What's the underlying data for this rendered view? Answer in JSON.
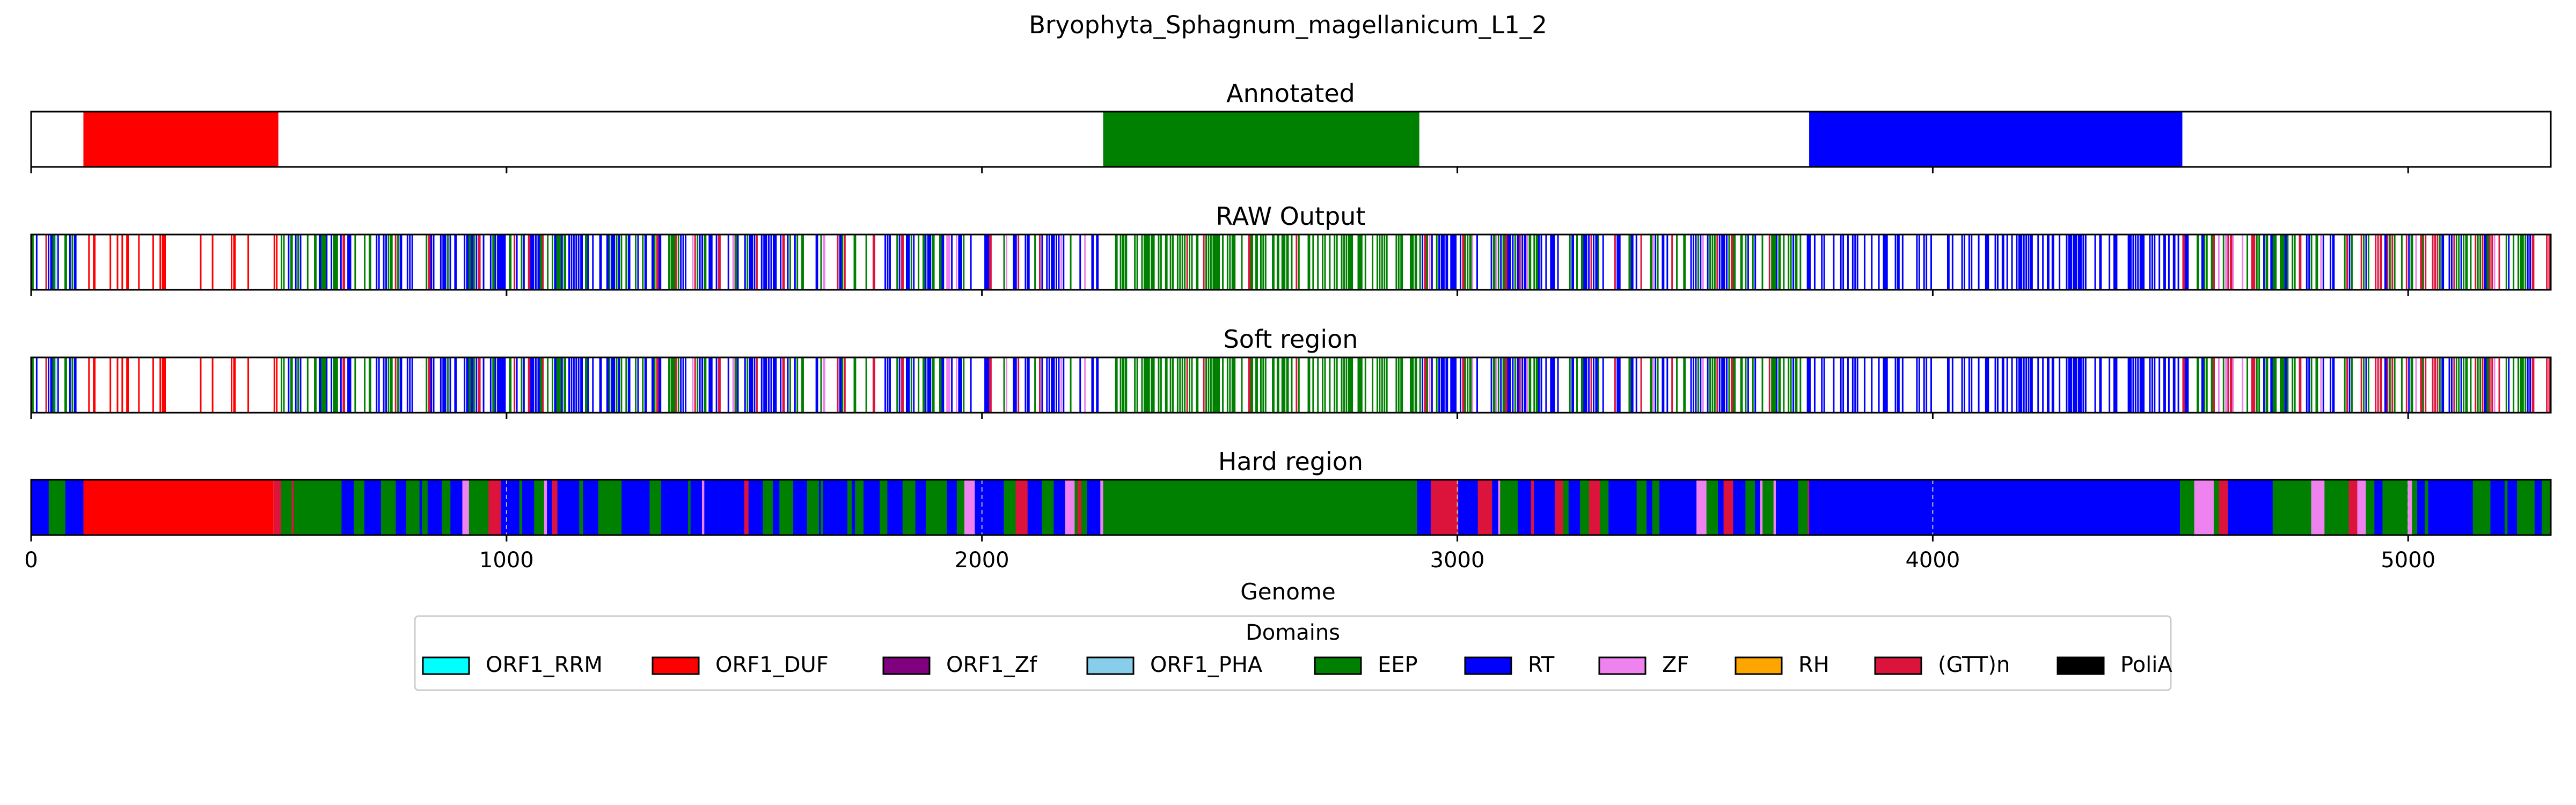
{
  "chart_data": {
    "type": "genome-track",
    "title": "Bryophyta_Sphagnum_magellanicum_L1_2",
    "xlabel": "Genome",
    "xlim": [
      0,
      5300
    ],
    "xticks": [
      0,
      1000,
      2000,
      3000,
      4000,
      5000
    ],
    "xtick_labels": [
      "0",
      "1000",
      "2000",
      "3000",
      "4000",
      "5000"
    ],
    "tracks": [
      {
        "title": "Annotated",
        "kind": "segments",
        "segments": [
          {
            "start": 110,
            "end": 520,
            "domain": "ORF1_DUF"
          },
          {
            "start": 2255,
            "end": 2920,
            "domain": "EEP"
          },
          {
            "start": 3740,
            "end": 4525,
            "domain": "RT"
          }
        ]
      },
      {
        "title": "RAW Output",
        "kind": "stripes",
        "profile": [
          {
            "start": 0,
            "end": 110,
            "mix": [
              [
                "EEP",
                0.3
              ],
              [
                "RT",
                0.45
              ],
              [
                "ORF1_PHA",
                0.1
              ],
              [
                "(GTT)n",
                0.15
              ]
            ],
            "density": 0.55
          },
          {
            "start": 110,
            "end": 520,
            "mix": [
              [
                "ORF1_DUF",
                1.0
              ]
            ],
            "density": 0.35
          },
          {
            "start": 520,
            "end": 1300,
            "mix": [
              [
                "RT",
                0.5
              ],
              [
                "EEP",
                0.45
              ],
              [
                "(GTT)n",
                0.05
              ]
            ],
            "density": 0.6
          },
          {
            "start": 1300,
            "end": 2255,
            "mix": [
              [
                "RT",
                0.45
              ],
              [
                "EEP",
                0.35
              ],
              [
                "(GTT)n",
                0.12
              ],
              [
                "ZF",
                0.08
              ]
            ],
            "density": 0.6
          },
          {
            "start": 2255,
            "end": 2920,
            "mix": [
              [
                "EEP",
                0.95
              ],
              [
                "(GTT)n",
                0.05
              ]
            ],
            "density": 0.55
          },
          {
            "start": 2920,
            "end": 3740,
            "mix": [
              [
                "RT",
                0.45
              ],
              [
                "EEP",
                0.35
              ],
              [
                "(GTT)n",
                0.15
              ],
              [
                "ZF",
                0.05
              ]
            ],
            "density": 0.65
          },
          {
            "start": 3740,
            "end": 4525,
            "mix": [
              [
                "RT",
                1.0
              ]
            ],
            "density": 0.45
          },
          {
            "start": 4525,
            "end": 5300,
            "mix": [
              [
                "EEP",
                0.45
              ],
              [
                "RT",
                0.3
              ],
              [
                "(GTT)n",
                0.2
              ],
              [
                "ZF",
                0.05
              ]
            ],
            "density": 0.6
          }
        ]
      },
      {
        "title": "Soft region",
        "kind": "stripes",
        "profile": [
          {
            "start": 0,
            "end": 110,
            "mix": [
              [
                "EEP",
                0.3
              ],
              [
                "RT",
                0.45
              ],
              [
                "ORF1_PHA",
                0.1
              ],
              [
                "(GTT)n",
                0.15
              ]
            ],
            "density": 0.55
          },
          {
            "start": 110,
            "end": 520,
            "mix": [
              [
                "ORF1_DUF",
                1.0
              ]
            ],
            "density": 0.35
          },
          {
            "start": 520,
            "end": 1300,
            "mix": [
              [
                "RT",
                0.5
              ],
              [
                "EEP",
                0.45
              ],
              [
                "(GTT)n",
                0.05
              ]
            ],
            "density": 0.6
          },
          {
            "start": 1300,
            "end": 2255,
            "mix": [
              [
                "RT",
                0.45
              ],
              [
                "EEP",
                0.35
              ],
              [
                "(GTT)n",
                0.12
              ],
              [
                "ZF",
                0.08
              ]
            ],
            "density": 0.6
          },
          {
            "start": 2255,
            "end": 2920,
            "mix": [
              [
                "EEP",
                0.95
              ],
              [
                "(GTT)n",
                0.05
              ]
            ],
            "density": 0.55
          },
          {
            "start": 2920,
            "end": 3740,
            "mix": [
              [
                "RT",
                0.45
              ],
              [
                "EEP",
                0.35
              ],
              [
                "(GTT)n",
                0.15
              ],
              [
                "ZF",
                0.05
              ]
            ],
            "density": 0.65
          },
          {
            "start": 3740,
            "end": 4525,
            "mix": [
              [
                "RT",
                1.0
              ]
            ],
            "density": 0.45
          },
          {
            "start": 4525,
            "end": 5300,
            "mix": [
              [
                "EEP",
                0.45
              ],
              [
                "RT",
                0.3
              ],
              [
                "(GTT)n",
                0.2
              ],
              [
                "ZF",
                0.05
              ]
            ],
            "density": 0.6
          }
        ]
      },
      {
        "title": "Hard region",
        "kind": "filled",
        "segments": [
          {
            "start": 0,
            "end": 110,
            "mix": [
              [
                "EEP",
                0.5
              ],
              [
                "RT",
                0.5
              ]
            ]
          },
          {
            "start": 110,
            "end": 510,
            "domain": "ORF1_DUF"
          },
          {
            "start": 510,
            "end": 2255,
            "mix": [
              [
                "RT",
                0.55
              ],
              [
                "EEP",
                0.3
              ],
              [
                "ZF",
                0.08
              ],
              [
                "(GTT)n",
                0.07
              ]
            ]
          },
          {
            "start": 2255,
            "end": 2915,
            "domain": "EEP"
          },
          {
            "start": 2915,
            "end": 3740,
            "mix": [
              [
                "RT",
                0.5
              ],
              [
                "EEP",
                0.35
              ],
              [
                "(GTT)n",
                0.1
              ],
              [
                "ZF",
                0.05
              ]
            ]
          },
          {
            "start": 3740,
            "end": 4520,
            "domain": "RT"
          },
          {
            "start": 4520,
            "end": 5300,
            "mix": [
              [
                "EEP",
                0.45
              ],
              [
                "RT",
                0.35
              ],
              [
                "(GTT)n",
                0.12
              ],
              [
                "ZF",
                0.08
              ]
            ]
          }
        ]
      }
    ],
    "legend": {
      "title": "Domains",
      "placement": "bottom-center",
      "entries": [
        {
          "name": "ORF1_RRM",
          "color": "#00ffff"
        },
        {
          "name": "ORF1_DUF",
          "color": "#ff0000"
        },
        {
          "name": "ORF1_Zf",
          "color": "#800080"
        },
        {
          "name": "ORF1_PHA",
          "color": "#87ceeb"
        },
        {
          "name": "EEP",
          "color": "#008000"
        },
        {
          "name": "RT",
          "color": "#0000ff"
        },
        {
          "name": "ZF",
          "color": "#ee82ee"
        },
        {
          "name": "RH",
          "color": "#ffa500"
        },
        {
          "name": "(GTT)n",
          "color": "#dc143c"
        },
        {
          "name": "PoliA",
          "color": "#000000"
        }
      ]
    }
  }
}
